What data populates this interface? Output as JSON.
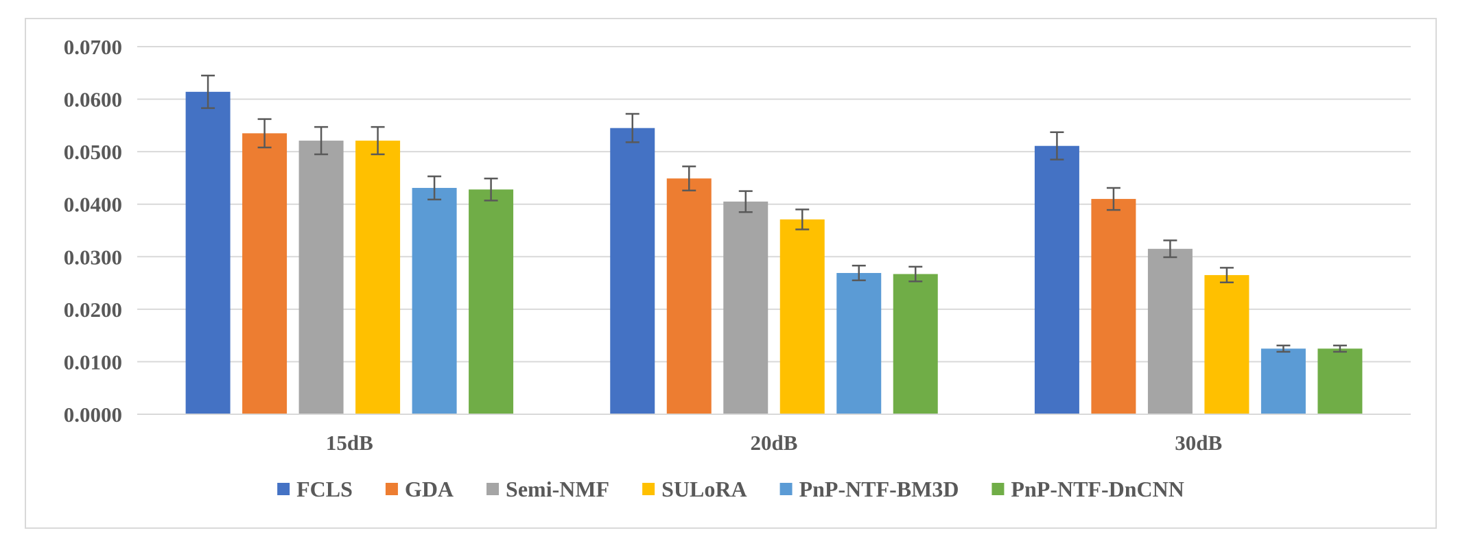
{
  "chart_data": {
    "type": "bar",
    "title": "",
    "xlabel": "",
    "ylabel": "",
    "ylim": [
      0,
      0.07
    ],
    "yticks": [
      0.0,
      0.01,
      0.02,
      0.03,
      0.04,
      0.05,
      0.06,
      0.07
    ],
    "ytick_labels": [
      "0.0000",
      "0.0100",
      "0.0200",
      "0.0300",
      "0.0400",
      "0.0500",
      "0.0600",
      "0.0700"
    ],
    "grid": true,
    "legend_position": "bottom",
    "error_bars": true,
    "categories": [
      "15dB",
      "20dB",
      "30dB"
    ],
    "series": [
      {
        "name": "FCLS",
        "color": "#4472c4",
        "values": [
          0.0614,
          0.0545,
          0.0511
        ],
        "errors": [
          0.0031,
          0.0027,
          0.0026
        ]
      },
      {
        "name": "GDA",
        "color": "#ed7d31",
        "values": [
          0.0535,
          0.0449,
          0.041
        ],
        "errors": [
          0.0027,
          0.0023,
          0.0021
        ]
      },
      {
        "name": "Semi-NMF",
        "color": "#a5a5a5",
        "values": [
          0.0521,
          0.0405,
          0.0315
        ],
        "errors": [
          0.0026,
          0.002,
          0.0016
        ]
      },
      {
        "name": "SULoRA",
        "color": "#ffc000",
        "values": [
          0.0521,
          0.0371,
          0.0265
        ],
        "errors": [
          0.0026,
          0.0019,
          0.0014
        ]
      },
      {
        "name": "PnP-NTF-BM3D",
        "color": "#5b9bd5",
        "values": [
          0.0431,
          0.0269,
          0.0125
        ],
        "errors": [
          0.0022,
          0.0014,
          0.0006
        ]
      },
      {
        "name": "PnP-NTF-DnCNN",
        "color": "#70ad47",
        "values": [
          0.0428,
          0.0267,
          0.0125
        ],
        "errors": [
          0.0021,
          0.0014,
          0.0006
        ]
      }
    ]
  },
  "style": {
    "grid_color": "#d9d9d9",
    "axis_color": "#d9d9d9",
    "errorbar_color": "#595959",
    "text_color": "#595959"
  }
}
